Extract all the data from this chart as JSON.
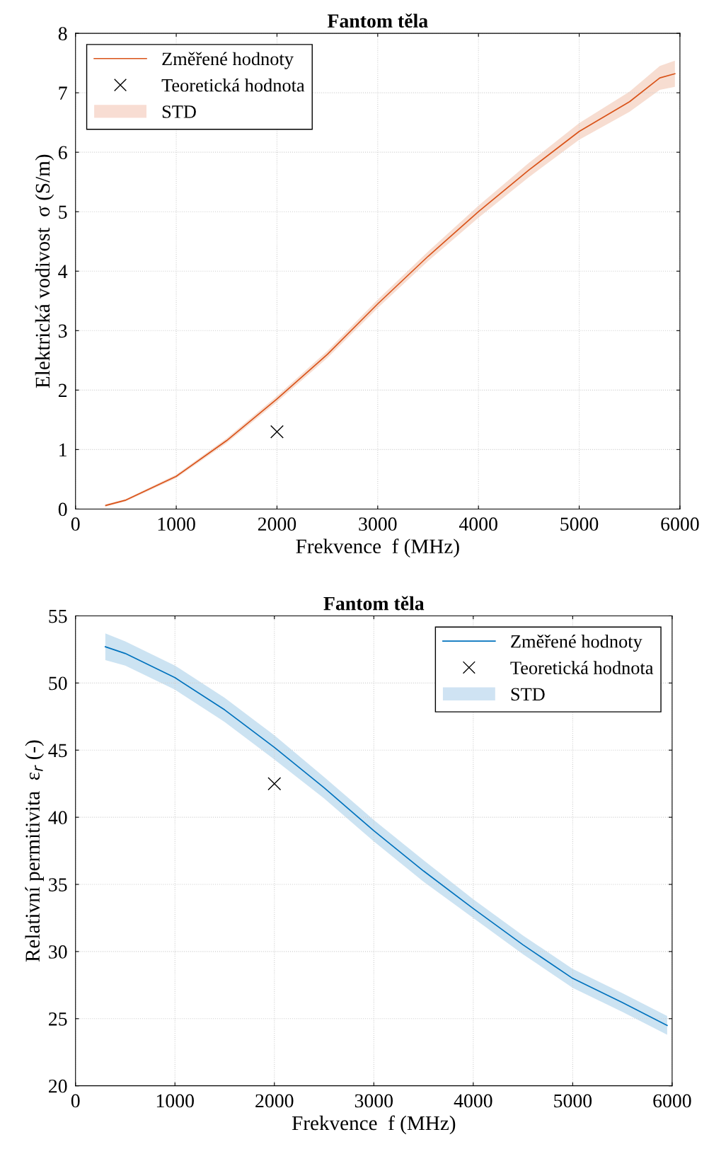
{
  "chart_data": [
    {
      "type": "line",
      "title": "Fantom těla",
      "xlabel": "Frekvence  f (MHz)",
      "ylabel": "Elektrická vodivost  σ (S/m)",
      "xlim": [
        0,
        6000
      ],
      "xticks": [
        0,
        1000,
        2000,
        3000,
        4000,
        5000,
        6000
      ],
      "ylim": [
        0,
        8
      ],
      "yticks": [
        0,
        1,
        2,
        3,
        4,
        5,
        6,
        7,
        8
      ],
      "grid": true,
      "legend": "top left",
      "series": [
        {
          "name": "Změřené hodnoty",
          "color": "#d95319",
          "x": [
            300,
            500,
            1000,
            1500,
            2000,
            2500,
            3000,
            3500,
            4000,
            4500,
            5000,
            5500,
            5800,
            5950
          ],
          "values": [
            0.06,
            0.15,
            0.55,
            1.15,
            1.85,
            2.6,
            3.45,
            4.25,
            5.0,
            5.7,
            6.35,
            6.85,
            7.25,
            7.32
          ],
          "lower": [
            0.04,
            0.13,
            0.52,
            1.11,
            1.8,
            2.54,
            3.38,
            4.17,
            4.9,
            5.58,
            6.21,
            6.68,
            7.05,
            7.1
          ],
          "upper": [
            0.08,
            0.17,
            0.58,
            1.19,
            1.9,
            2.66,
            3.52,
            4.33,
            5.1,
            5.82,
            6.49,
            7.02,
            7.45,
            7.54
          ]
        },
        {
          "type": "scatter",
          "name": "Teoretická hodnota",
          "color": "#000000",
          "marker": "cross",
          "x": [
            2000
          ],
          "values": [
            1.3
          ]
        },
        {
          "type": "area",
          "name": "STD",
          "color": "#f8ddd3"
        }
      ]
    },
    {
      "type": "line",
      "title": "Fantom těla",
      "xlabel": "Frekvence  f (MHz)",
      "ylabel": "Relativní permitivita  ε$_{r}$ (-)",
      "xlim": [
        0,
        6000
      ],
      "xticks": [
        0,
        1000,
        2000,
        3000,
        4000,
        5000,
        6000
      ],
      "ylim": [
        20,
        55
      ],
      "yticks": [
        20,
        25,
        30,
        35,
        40,
        45,
        50,
        55
      ],
      "grid": true,
      "legend": "top right",
      "series": [
        {
          "name": "Změřené hodnoty",
          "color": "#0072bd",
          "x": [
            300,
            500,
            1000,
            1500,
            2000,
            2500,
            3000,
            3500,
            4000,
            4500,
            5000,
            5500,
            5950
          ],
          "values": [
            52.7,
            52.2,
            50.4,
            48.0,
            45.2,
            42.2,
            39.0,
            36.0,
            33.2,
            30.5,
            28.0,
            26.2,
            24.5
          ],
          "lower": [
            51.7,
            51.3,
            49.5,
            47.1,
            44.3,
            41.4,
            38.2,
            35.2,
            32.5,
            29.8,
            27.3,
            25.5,
            23.8
          ],
          "upper": [
            53.7,
            53.1,
            51.3,
            48.9,
            46.1,
            43.0,
            39.8,
            36.8,
            33.9,
            31.2,
            28.7,
            26.9,
            25.2
          ]
        },
        {
          "type": "scatter",
          "name": "Teoretická hodnota",
          "color": "#000000",
          "marker": "cross",
          "x": [
            2000
          ],
          "values": [
            42.5
          ]
        },
        {
          "type": "area",
          "name": "STD",
          "color": "#cfe3f3"
        }
      ]
    }
  ]
}
